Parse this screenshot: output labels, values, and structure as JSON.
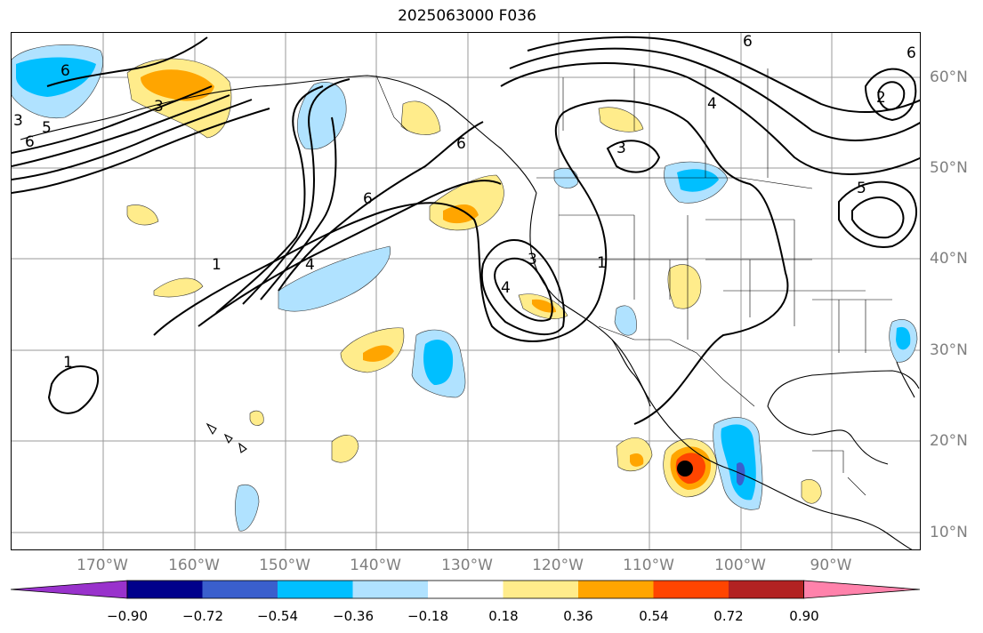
{
  "title": "2025063000 F036",
  "lat_labels": [
    "60°N",
    "50°N",
    "40°N",
    "30°N",
    "20°N",
    "10°N"
  ],
  "lon_labels": [
    "170°W",
    "160°W",
    "150°W",
    "140°W",
    "130°W",
    "120°W",
    "110°W",
    "100°W",
    "90°W"
  ],
  "contour_labels": [
    "6",
    "5",
    "3",
    "6",
    "3",
    "6",
    "1",
    "4",
    "6",
    "3",
    "3",
    "4",
    "1",
    "1",
    "6",
    "2",
    "6",
    "4",
    "5"
  ],
  "colorbar": {
    "ticks": [
      "−0.90",
      "−0.72",
      "−0.54",
      "−0.36",
      "−0.18",
      "0.18",
      "0.36",
      "0.54",
      "0.72",
      "0.90"
    ],
    "colors": [
      "#9932cc",
      "#00008b",
      "#3a5fcd",
      "#00bfff",
      "#b0e2ff",
      "#ffffff",
      "#ffec8b",
      "#ffa500",
      "#ff4500",
      "#b22222",
      "#ff82ab"
    ]
  },
  "chart_data": {
    "type": "heatmap",
    "title": "2025063000 F036",
    "projection": "PlateCarree",
    "lon_range": [
      -180,
      -80
    ],
    "lat_range": [
      8,
      65
    ],
    "colorbar_levels": [
      -0.9,
      -0.72,
      -0.54,
      -0.36,
      -0.18,
      0.18,
      0.36,
      0.54,
      0.72,
      0.9
    ],
    "contour_values_shown": [
      1,
      2,
      3,
      4,
      5,
      6
    ],
    "marker": {
      "symbol": "black dot",
      "lon": -106,
      "lat": 17
    },
    "features": [
      "coastlines",
      "country borders",
      "US state borders",
      "lat/lon gridlines"
    ]
  }
}
